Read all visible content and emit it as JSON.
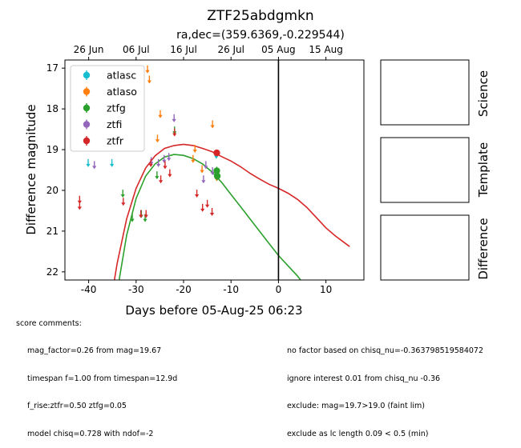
{
  "chart_data": {
    "type": "scatter",
    "title": "ZTF25abdgmkn",
    "subtitle": "ra,dec=(359.6369,-0.229544)",
    "xlabel": "Days before 05-Aug-25 06:23",
    "ylabel": "Difference magnitude",
    "xlim": [
      -45,
      18
    ],
    "ylim": [
      22.2,
      16.8
    ],
    "y_inverted": true,
    "x_ticks": [
      -40,
      -30,
      -20,
      -10,
      0,
      10
    ],
    "y_ticks": [
      17,
      18,
      19,
      20,
      21,
      22
    ],
    "top_axis": {
      "tick_labels": [
        "26 Jun",
        "06 Jul",
        "16 Jul",
        "26 Jul",
        "05 Aug",
        "15 Aug"
      ],
      "tick_positions": [
        -40,
        -30,
        -20,
        -10,
        0,
        10
      ]
    },
    "vline_x": 0,
    "legend_location": "upper left",
    "series": [
      {
        "name": "atlasc",
        "color": "#17becf",
        "marker": "upper-limit",
        "x": [
          -40.1,
          -35.1,
          -13.1
        ],
        "y": [
          19.35,
          19.35,
          19.15
        ]
      },
      {
        "name": "atlaso",
        "color": "#ff7f0e",
        "marker": "upper-limit",
        "x": [
          -27.6,
          -27.2,
          -24.9,
          -25.5,
          -18.0,
          -17.6,
          -16.1,
          -13.9,
          -13.0
        ],
        "y": [
          17.05,
          17.3,
          18.15,
          18.75,
          19.25,
          19.0,
          19.5,
          18.4,
          19.7
        ]
      },
      {
        "name": "ztfg",
        "color": "#2ca02c",
        "marker": "upper-limit",
        "x": [
          -32.8,
          -30.8,
          -28.9,
          -28.1,
          -25.6,
          -21.9
        ],
        "y": [
          20.1,
          20.7,
          20.6,
          20.7,
          19.65,
          18.55
        ]
      },
      {
        "name": "ztfi",
        "color": "#9467bd",
        "marker": "upper-limit",
        "x": [
          -38.8,
          -26.8,
          -25.3,
          -24.1,
          -23.1,
          -22.0,
          -15.8,
          -15.3,
          -13.9
        ],
        "y": [
          19.4,
          19.3,
          19.35,
          19.25,
          19.2,
          18.25,
          19.75,
          19.4,
          19.55
        ]
      },
      {
        "name": "ztfr",
        "color": "#d62728",
        "marker": "upper-limit",
        "x": [
          -41.9,
          -41.9,
          -32.7,
          -29.0,
          -27.9,
          -26.9,
          -24.8,
          -23.9,
          -22.9,
          -21.9,
          -17.2,
          -16.0,
          -15.0,
          -14.0
        ],
        "y": [
          20.25,
          20.4,
          20.3,
          20.6,
          20.6,
          19.35,
          19.75,
          19.4,
          19.6,
          18.6,
          20.1,
          20.45,
          20.35,
          20.55
        ]
      },
      {
        "name": "ztfg-detections",
        "color": "#2ca02c",
        "marker": "point",
        "x": [
          -13.0,
          -12.9
        ],
        "y": [
          19.52,
          19.65
        ],
        "err": [
          0.1,
          0.1
        ]
      },
      {
        "name": "ztfr-detections",
        "color": "#d62728",
        "marker": "point",
        "x": [
          -13.0
        ],
        "y": [
          19.08
        ],
        "err": [
          0.08
        ]
      }
    ],
    "model_curves": [
      {
        "band": "ztfg",
        "color": "#2ca02c",
        "x": [
          -34.0,
          -32.0,
          -30.0,
          -28.0,
          -26.0,
          -24.0,
          -22.0,
          -20.0,
          -18.0,
          -16.0,
          -14.0,
          -12.0,
          -10.0,
          -8.0,
          -6.0,
          -4.0,
          -2.0,
          0.0,
          2.0,
          4.0,
          5.0
        ],
        "y": [
          22.5,
          21.1,
          20.2,
          19.65,
          19.35,
          19.18,
          19.12,
          19.14,
          19.22,
          19.35,
          19.55,
          19.8,
          20.1,
          20.4,
          20.7,
          21.0,
          21.3,
          21.6,
          21.85,
          22.1,
          22.25
        ]
      },
      {
        "band": "ztfr",
        "color": "#d62728",
        "x": [
          -35.0,
          -34.0,
          -32.0,
          -30.0,
          -28.0,
          -26.0,
          -24.0,
          -22.0,
          -20.0,
          -18.0,
          -16.0,
          -14.0,
          -12.0,
          -10.0,
          -8.0,
          -6.0,
          -4.0,
          -2.0,
          0.0,
          2.0,
          4.0,
          6.0,
          8.0,
          10.0,
          12.0,
          15.0
        ],
        "y": [
          22.5,
          21.8,
          20.7,
          19.95,
          19.45,
          19.15,
          18.97,
          18.9,
          18.87,
          18.9,
          18.97,
          19.05,
          19.17,
          19.28,
          19.42,
          19.58,
          19.72,
          19.85,
          19.95,
          20.07,
          20.22,
          20.42,
          20.67,
          20.92,
          21.12,
          21.38
        ]
      }
    ]
  },
  "stamps": [
    {
      "label": "Science"
    },
    {
      "label": "Template"
    },
    {
      "label": "Difference"
    }
  ],
  "score_comments": {
    "heading": "score comments:",
    "left": [
      "mag_factor=0.26 from mag=19.67",
      "timespan f=1.00 from timespan=12.9d",
      "f_rise:ztfr=0.50 ztfg=0.05",
      "model chisq=0.728 with ndof=-2"
    ],
    "right": [
      "no factor based on chisq_nu=-0.363798519584072",
      "ignore interest 0.01 from chisq_nu -0.36",
      "exclude: mag=19.7>19.0 (faint lim)",
      "exclude as lc length 0.09 < 0.5 (min)"
    ]
  }
}
